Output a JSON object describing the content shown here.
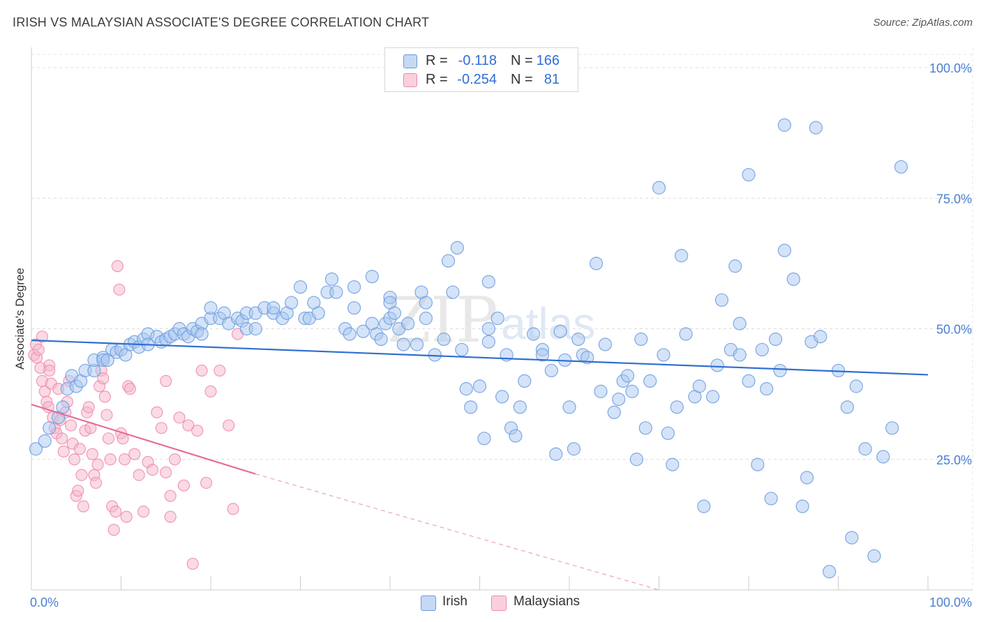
{
  "header": {
    "title": "IRISH VS MALAYSIAN ASSOCIATE'S DEGREE CORRELATION CHART",
    "source": "Source: ZipAtlas.com"
  },
  "watermark": {
    "zip": "ZIP",
    "atlas": "atlas"
  },
  "legend": {
    "rows": [
      {
        "r_label": "R =",
        "r_value": "-0.118",
        "n_label": "N =",
        "n_value": "166",
        "color": "#a9c7f0"
      },
      {
        "r_label": "R =",
        "r_value": "-0.254",
        "n_label": "N =",
        "n_value": "81",
        "color": "#f5b6c9"
      }
    ]
  },
  "bottom_legend": {
    "items": [
      "Irish",
      "Malaysians"
    ]
  },
  "chart_data": {
    "type": "scatter",
    "title": "IRISH VS MALAYSIAN ASSOCIATE'S DEGREE CORRELATION CHART",
    "xlabel": "",
    "ylabel": "Associate's Degree",
    "xlim": [
      0,
      100
    ],
    "ylim": [
      0,
      100
    ],
    "x_tick_labels": [
      "0.0%",
      "100.0%"
    ],
    "y_tick_labels": [
      "100.0%",
      "75.0%",
      "50.0%",
      "25.0%"
    ],
    "y_ticks": [
      100,
      75,
      50,
      25
    ],
    "grid": true,
    "legend_position": "top-center",
    "series": [
      {
        "name": "Irish",
        "color": "#6a9be0",
        "fill": "#a9c7f0",
        "trend": {
          "x": [
            0,
            100
          ],
          "y": [
            47.8,
            41.2
          ],
          "style": "solid"
        },
        "points": [
          [
            0.5,
            27
          ],
          [
            1.5,
            28.5
          ],
          [
            2,
            31
          ],
          [
            3,
            33
          ],
          [
            3.5,
            35
          ],
          [
            4,
            38.5
          ],
          [
            4.5,
            41
          ],
          [
            5,
            39
          ],
          [
            5.5,
            40
          ],
          [
            6,
            42
          ],
          [
            7,
            42
          ],
          [
            7,
            44
          ],
          [
            8,
            44.5
          ],
          [
            8,
            44
          ],
          [
            8.5,
            44
          ],
          [
            9,
            46
          ],
          [
            9.5,
            45.5
          ],
          [
            10,
            46
          ],
          [
            10.5,
            45
          ],
          [
            11,
            47
          ],
          [
            11.5,
            47.5
          ],
          [
            12,
            46.5
          ],
          [
            12.5,
            48
          ],
          [
            13,
            49
          ],
          [
            13,
            47
          ],
          [
            14,
            48.5
          ],
          [
            14.5,
            47.5
          ],
          [
            15,
            48
          ],
          [
            15.5,
            48.5
          ],
          [
            16,
            49
          ],
          [
            16.5,
            50
          ],
          [
            17,
            49
          ],
          [
            17.5,
            48.5
          ],
          [
            18,
            50
          ],
          [
            18.5,
            49.5
          ],
          [
            19,
            51
          ],
          [
            19,
            49
          ],
          [
            20,
            52
          ],
          [
            20,
            54
          ],
          [
            21,
            52
          ],
          [
            21.5,
            53
          ],
          [
            22,
            51
          ],
          [
            23,
            52
          ],
          [
            23.5,
            51.5
          ],
          [
            24,
            50
          ],
          [
            24,
            53
          ],
          [
            25,
            50
          ],
          [
            25,
            53
          ],
          [
            26,
            54
          ],
          [
            27,
            53
          ],
          [
            27,
            54
          ],
          [
            28,
            52
          ],
          [
            28.5,
            53
          ],
          [
            29,
            55
          ],
          [
            30,
            58
          ],
          [
            30.5,
            52
          ],
          [
            31,
            52
          ],
          [
            31.5,
            55
          ],
          [
            32,
            53
          ],
          [
            33,
            57
          ],
          [
            33.5,
            59.5
          ],
          [
            34,
            57
          ],
          [
            35,
            50
          ],
          [
            35.5,
            49
          ],
          [
            36,
            58
          ],
          [
            36,
            54
          ],
          [
            37,
            49.5
          ],
          [
            38,
            60
          ],
          [
            38,
            51
          ],
          [
            38.5,
            49
          ],
          [
            39,
            48
          ],
          [
            39.5,
            51
          ],
          [
            40,
            52
          ],
          [
            40,
            56
          ],
          [
            40,
            55
          ],
          [
            40.5,
            53
          ],
          [
            41,
            50
          ],
          [
            41.5,
            47
          ],
          [
            42,
            51
          ],
          [
            43,
            47
          ],
          [
            43.5,
            57
          ],
          [
            44,
            55
          ],
          [
            44,
            52
          ],
          [
            45,
            45
          ],
          [
            46,
            48
          ],
          [
            46.5,
            63
          ],
          [
            47,
            57
          ],
          [
            47.5,
            65.5
          ],
          [
            48,
            46
          ],
          [
            48.5,
            38.5
          ],
          [
            49,
            35
          ],
          [
            50,
            39
          ],
          [
            50.5,
            29
          ],
          [
            51,
            47.5
          ],
          [
            51,
            50
          ],
          [
            51,
            59
          ],
          [
            52,
            52
          ],
          [
            52.5,
            37
          ],
          [
            53,
            45
          ],
          [
            53.5,
            31
          ],
          [
            54,
            29.5
          ],
          [
            54.5,
            35
          ],
          [
            55,
            40
          ],
          [
            56,
            49
          ],
          [
            57,
            46
          ],
          [
            57,
            45
          ],
          [
            58,
            42
          ],
          [
            58.5,
            26
          ],
          [
            59,
            49.5
          ],
          [
            59.5,
            44
          ],
          [
            60,
            35
          ],
          [
            60.5,
            27
          ],
          [
            61,
            48
          ],
          [
            61.5,
            45
          ],
          [
            62,
            44.5
          ],
          [
            63,
            62.5
          ],
          [
            63.5,
            38
          ],
          [
            64,
            47
          ],
          [
            65,
            34
          ],
          [
            65.5,
            36.5
          ],
          [
            66,
            40
          ],
          [
            66.5,
            41
          ],
          [
            67,
            38
          ],
          [
            67.5,
            25
          ],
          [
            68,
            48
          ],
          [
            68.5,
            31
          ],
          [
            69,
            40
          ],
          [
            70,
            77
          ],
          [
            70.5,
            45
          ],
          [
            71,
            30
          ],
          [
            71.5,
            24
          ],
          [
            72,
            35
          ],
          [
            72.5,
            64
          ],
          [
            73,
            49
          ],
          [
            74,
            37
          ],
          [
            74.5,
            39
          ],
          [
            75,
            16
          ],
          [
            76,
            37
          ],
          [
            76.5,
            43
          ],
          [
            77,
            55.5
          ],
          [
            78,
            46
          ],
          [
            78.5,
            62
          ],
          [
            79,
            45
          ],
          [
            79,
            51
          ],
          [
            80,
            40
          ],
          [
            80,
            79.5
          ],
          [
            81,
            24
          ],
          [
            81.5,
            46
          ],
          [
            82,
            38.5
          ],
          [
            82.5,
            17.5
          ],
          [
            83,
            48
          ],
          [
            83.5,
            42
          ],
          [
            84,
            65
          ],
          [
            84,
            89
          ],
          [
            85,
            59.5
          ],
          [
            86,
            16
          ],
          [
            86.5,
            21.5
          ],
          [
            87,
            47.5
          ],
          [
            87.5,
            88.5
          ],
          [
            88,
            48.5
          ],
          [
            89,
            3.5
          ],
          [
            90,
            42
          ],
          [
            91,
            35
          ],
          [
            91.5,
            10
          ],
          [
            92,
            39
          ],
          [
            93,
            27
          ],
          [
            94,
            6.5
          ],
          [
            95,
            25.5
          ],
          [
            96,
            31
          ],
          [
            97,
            81
          ]
        ]
      },
      {
        "name": "Malaysians",
        "color": "#ee8aab",
        "fill": "#f5b6c9",
        "trend": {
          "x": [
            0,
            25
          ],
          "y": [
            35.5,
            22.2
          ],
          "style": "solid",
          "extend_to": [
            70,
            0
          ],
          "extend_style": "dashed"
        },
        "points": [
          [
            0.3,
            45
          ],
          [
            0.5,
            47
          ],
          [
            0.6,
            44.5
          ],
          [
            0.8,
            46
          ],
          [
            1,
            42.5
          ],
          [
            1.2,
            40
          ],
          [
            1.5,
            38
          ],
          [
            1.7,
            36
          ],
          [
            1.9,
            35
          ],
          [
            2,
            43
          ],
          [
            2.2,
            39.5
          ],
          [
            2.4,
            33
          ],
          [
            2.6,
            31
          ],
          [
            2.8,
            30
          ],
          [
            3,
            38.5
          ],
          [
            3.2,
            32.5
          ],
          [
            3.4,
            29
          ],
          [
            3.6,
            26.5
          ],
          [
            3.8,
            34
          ],
          [
            4,
            36
          ],
          [
            4.2,
            40
          ],
          [
            4.4,
            31.5
          ],
          [
            4.6,
            28
          ],
          [
            4.8,
            25
          ],
          [
            5,
            18
          ],
          [
            5.2,
            19
          ],
          [
            5.4,
            27
          ],
          [
            5.6,
            22
          ],
          [
            5.8,
            16
          ],
          [
            6,
            30.5
          ],
          [
            6.2,
            34
          ],
          [
            6.4,
            35
          ],
          [
            6.6,
            31
          ],
          [
            6.8,
            26
          ],
          [
            7,
            22
          ],
          [
            7.2,
            20.5
          ],
          [
            7.4,
            24
          ],
          [
            7.6,
            39
          ],
          [
            7.8,
            42
          ],
          [
            8,
            40.5
          ],
          [
            8.2,
            37
          ],
          [
            8.4,
            33.5
          ],
          [
            8.6,
            29
          ],
          [
            8.8,
            25
          ],
          [
            9,
            16
          ],
          [
            9.2,
            11.5
          ],
          [
            9.4,
            15
          ],
          [
            9.6,
            62
          ],
          [
            9.8,
            57.5
          ],
          [
            10,
            30
          ],
          [
            10.2,
            29
          ],
          [
            10.4,
            25
          ],
          [
            10.6,
            14
          ],
          [
            10.8,
            39
          ],
          [
            11,
            38.5
          ],
          [
            11.5,
            26
          ],
          [
            12,
            22
          ],
          [
            12.5,
            15
          ],
          [
            13,
            24.5
          ],
          [
            13.5,
            23
          ],
          [
            14,
            34
          ],
          [
            14.5,
            31
          ],
          [
            15,
            22.5
          ],
          [
            15,
            40
          ],
          [
            15.5,
            18
          ],
          [
            15.5,
            14
          ],
          [
            16,
            25
          ],
          [
            16.5,
            33
          ],
          [
            17,
            20
          ],
          [
            17.5,
            31.5
          ],
          [
            18,
            5
          ],
          [
            18.5,
            30.5
          ],
          [
            19,
            42
          ],
          [
            19.5,
            20.5
          ],
          [
            20,
            38
          ],
          [
            21,
            42
          ],
          [
            22,
            31.5
          ],
          [
            22.5,
            15.5
          ],
          [
            23,
            49
          ],
          [
            1.2,
            48.5
          ],
          [
            2,
            42
          ]
        ]
      }
    ]
  }
}
